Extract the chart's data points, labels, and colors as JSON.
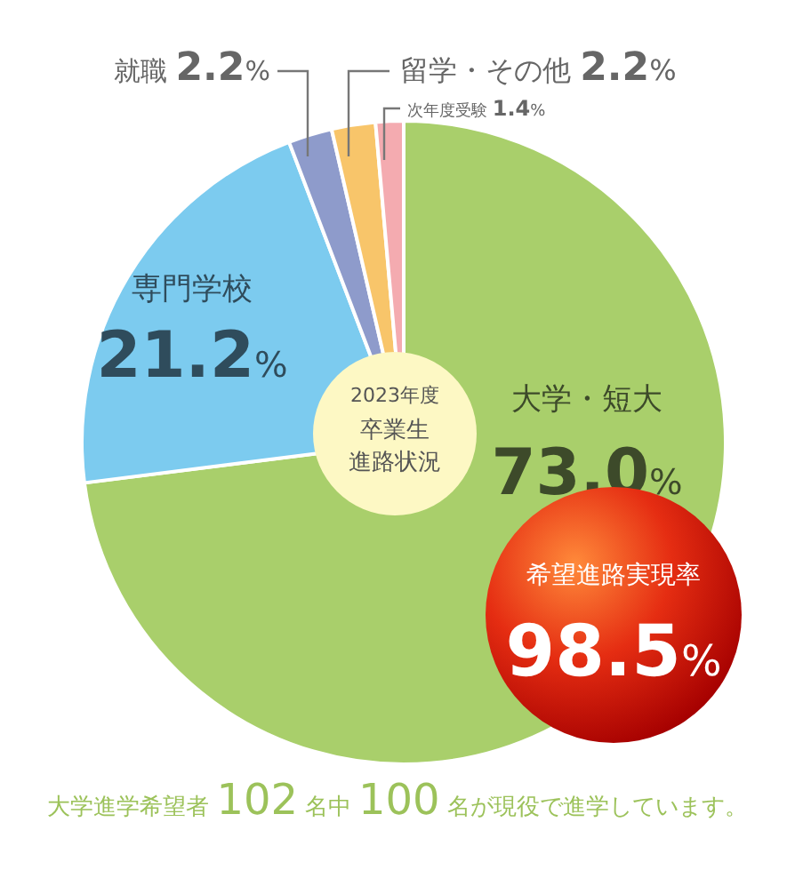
{
  "chart_data": {
    "type": "pie",
    "title": "2023年度卒業生進路状況",
    "categories": [
      "大学・短大",
      "専門学校",
      "就職",
      "留学・その他",
      "次年度受験"
    ],
    "values": [
      73.0,
      21.2,
      2.2,
      2.2,
      1.4
    ],
    "value_labels": [
      "73.0%",
      "21.2%",
      "2.2%",
      "2.2%",
      "1.4%"
    ],
    "colors": [
      "#a9cf6b",
      "#7ccbef",
      "#8e9bcb",
      "#f8c56a",
      "#f4abb0"
    ],
    "annotations": [
      "希望進路実現率 98.5%",
      "大学進学希望者 102 名中 100 名が現役で進学しています。"
    ]
  }
}
